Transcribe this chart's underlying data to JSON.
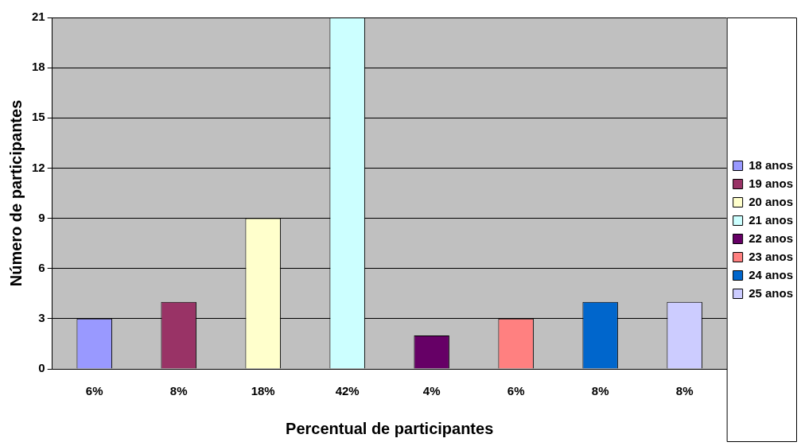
{
  "chart_data": {
    "type": "bar",
    "stacked": true,
    "xlabel": "Percentual de participantes",
    "ylabel": "Número de participantes",
    "categories": [
      "6%",
      "8%",
      "18%",
      "42%",
      "4%",
      "6%",
      "8%",
      "8%"
    ],
    "series": [
      {
        "name": "18 anos",
        "color": "#9999ff",
        "values": [
          3,
          null,
          null,
          null,
          null,
          null,
          null,
          null
        ]
      },
      {
        "name": "19 anos",
        "color": "#993366",
        "values": [
          null,
          4,
          null,
          null,
          null,
          null,
          null,
          null
        ]
      },
      {
        "name": "20 anos",
        "color": "#ffffcc",
        "values": [
          null,
          null,
          9,
          null,
          null,
          null,
          null,
          null
        ]
      },
      {
        "name": "21 anos",
        "color": "#ccffff",
        "values": [
          null,
          null,
          null,
          21,
          null,
          null,
          null,
          null
        ]
      },
      {
        "name": "22 anos",
        "color": "#660066",
        "values": [
          null,
          null,
          null,
          null,
          2,
          null,
          null,
          null
        ]
      },
      {
        "name": "23 anos",
        "color": "#ff8080",
        "values": [
          null,
          null,
          null,
          null,
          null,
          3,
          null,
          null
        ]
      },
      {
        "name": "24 anos",
        "color": "#0066cc",
        "values": [
          null,
          null,
          null,
          null,
          null,
          null,
          4,
          null
        ]
      },
      {
        "name": "25 anos",
        "color": "#ccccff",
        "values": [
          null,
          null,
          null,
          null,
          null,
          null,
          null,
          4
        ]
      }
    ],
    "ylim": [
      0,
      21
    ],
    "yticks": [
      0,
      3,
      6,
      9,
      12,
      15,
      18,
      21
    ],
    "grid": "y",
    "legend": "right"
  }
}
